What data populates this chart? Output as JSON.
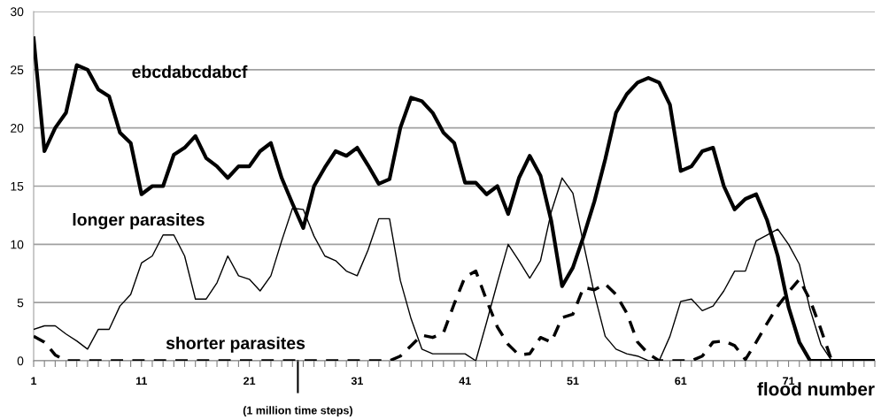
{
  "chart_data": {
    "type": "line",
    "categories": [
      "1",
      null,
      null,
      null,
      null,
      null,
      null,
      null,
      null,
      null,
      "11",
      null,
      null,
      null,
      null,
      null,
      null,
      null,
      null,
      null,
      "21",
      null,
      null,
      null,
      null,
      null,
      null,
      null,
      null,
      null,
      "31",
      null,
      null,
      null,
      null,
      null,
      null,
      null,
      null,
      null,
      "41",
      null,
      null,
      null,
      null,
      null,
      null,
      null,
      null,
      null,
      "51",
      null,
      null,
      null,
      null,
      null,
      null,
      null,
      null,
      null,
      "61",
      null,
      null,
      null,
      null,
      null,
      null,
      null,
      null,
      null,
      "71",
      null,
      null,
      null,
      null,
      null,
      null,
      null,
      null
    ],
    "series": [
      {
        "name": "ebcdabcdabcf",
        "color": "#000000",
        "line_style": "solid",
        "values": [
          27.7,
          18.0,
          20.0,
          21.3,
          25.4,
          25.0,
          23.3,
          22.7,
          19.6,
          18.7,
          14.3,
          15.0,
          15.0,
          17.7,
          18.3,
          19.3,
          17.4,
          16.7,
          15.7,
          16.7,
          16.7,
          18.0,
          18.7,
          15.7,
          13.5,
          11.4,
          15.0,
          16.6,
          18.0,
          17.6,
          18.3,
          16.8,
          15.2,
          15.6,
          20.0,
          22.6,
          22.3,
          21.3,
          19.6,
          18.7,
          15.3,
          15.3,
          14.3,
          15.0,
          12.6,
          15.7,
          17.6,
          15.9,
          12.0,
          6.4,
          8.0,
          10.7,
          13.7,
          17.3,
          21.3,
          22.9,
          23.9,
          24.3,
          23.9,
          22.0,
          16.3,
          16.7,
          18.0,
          18.3,
          15.0,
          13.0,
          13.9,
          14.3,
          12.1,
          9.0,
          4.6,
          1.6,
          0,
          0,
          0,
          0,
          0,
          0,
          0
        ]
      },
      {
        "name": "longer parasites",
        "color": "#000000",
        "line_style": "solid",
        "values": [
          2.7,
          3.0,
          3.0,
          2.3,
          1.7,
          1.0,
          2.7,
          2.7,
          4.7,
          5.7,
          8.4,
          9.0,
          10.8,
          10.8,
          9.0,
          5.3,
          5.3,
          6.7,
          9.0,
          7.3,
          7.0,
          6.0,
          7.3,
          10.3,
          13.1,
          13.0,
          10.7,
          9.0,
          8.6,
          7.7,
          7.3,
          9.5,
          12.2,
          12.2,
          6.9,
          3.6,
          1.0,
          0.6,
          0.6,
          0.6,
          0.6,
          0,
          3.3,
          6.7,
          10.0,
          8.6,
          7.1,
          8.6,
          12.8,
          15.7,
          14.4,
          10.0,
          5.7,
          2.1,
          1.0,
          0.6,
          0.4,
          0,
          0,
          2.1,
          5.1,
          5.3,
          4.3,
          4.7,
          6.0,
          7.7,
          7.7,
          10.3,
          10.8,
          11.3,
          10.0,
          8.3,
          4.4,
          1.4,
          0,
          0,
          0,
          0,
          0
        ]
      },
      {
        "name": "shorter parasites",
        "color": "#000000",
        "line_style": "dashed",
        "values": [
          2.1,
          1.6,
          0.5,
          0,
          0,
          0,
          0,
          0,
          0,
          0,
          0,
          0,
          0,
          0,
          0,
          0,
          0,
          0,
          0,
          0,
          0,
          0,
          0,
          0,
          0,
          0,
          0,
          0,
          0,
          0,
          0,
          0,
          0,
          0,
          0.4,
          1.3,
          2.2,
          2.0,
          2.4,
          4.9,
          7.2,
          7.7,
          5.2,
          2.9,
          1.4,
          0.5,
          0.6,
          2.0,
          1.6,
          3.7,
          4.0,
          6.3,
          6.1,
          6.6,
          5.7,
          4.1,
          1.6,
          0.6,
          0,
          0,
          0,
          0,
          0.4,
          1.6,
          1.7,
          1.3,
          0.1,
          1.6,
          3.2,
          4.7,
          5.9,
          7.0,
          5.2,
          2.7,
          0,
          0,
          0,
          0,
          0
        ]
      }
    ],
    "xlabel": "flood number",
    "annotations": [
      "(1 million time steps)"
    ],
    "ylim": [
      0,
      30
    ],
    "yticks": [
      0,
      5,
      10,
      15,
      20,
      25,
      30
    ],
    "grid": "y",
    "legend": false,
    "marker": "none"
  }
}
